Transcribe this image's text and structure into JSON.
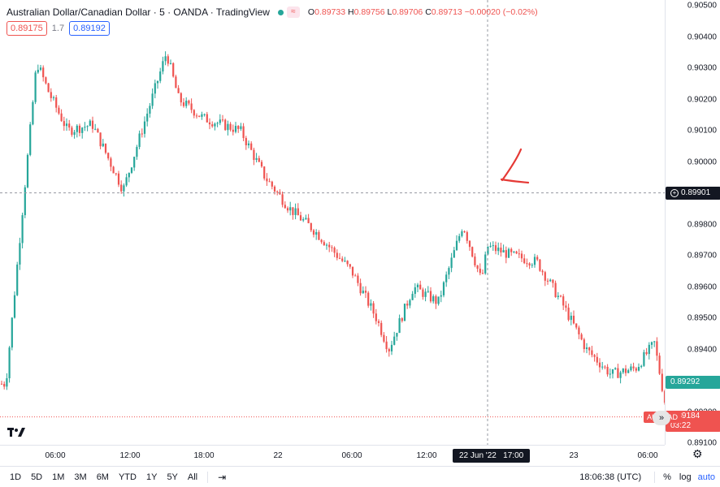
{
  "legend": {
    "title": "Australian Dollar/Canadian Dollar · 5 · OANDA · TradingView",
    "wave_glyph": "≈",
    "o_label": "O",
    "o_val": "0.89733",
    "h_label": "H",
    "h_val": "0.89756",
    "l_label": "L",
    "l_val": "0.89706",
    "c_label": "C",
    "c_val": "0.89713",
    "change": "−0.00020 (−0.02%)"
  },
  "quote": {
    "sell": "0.89175",
    "spread": "1.7",
    "buy": "0.89192"
  },
  "price_axis": {
    "ticks": [
      "0.90500",
      "0.90400",
      "0.90300",
      "0.90200",
      "0.90100",
      "0.90000",
      "0.89900",
      "0.89800",
      "0.89700",
      "0.89600",
      "0.89500",
      "0.89400",
      "0.89300",
      "0.89200",
      "0.89100"
    ],
    "crosshair_price": "0.89901",
    "last_price": "0.89292",
    "bid_price": "0.89184",
    "bid_countdown": "03:22",
    "bid_tag": "AUDCAD"
  },
  "time_axis": {
    "labels": [
      "06:00",
      "12:00",
      "18:00",
      "22",
      "06:00",
      "12:00",
      "23",
      "06:00"
    ],
    "crosshair_time": "22 Jun '22   17:00"
  },
  "bottom_bar": {
    "ranges": [
      "1D",
      "5D",
      "1M",
      "3M",
      "6M",
      "YTD",
      "1Y",
      "5Y",
      "All"
    ],
    "clock": "18:06:38 (UTC)",
    "pct": "%",
    "log": "log",
    "auto": "auto"
  },
  "colors": {
    "up": "#26a69a",
    "down": "#ef5350",
    "crosshair": "#9598a1",
    "annotation": "#e53935"
  },
  "chart_data": {
    "type": "candlestick",
    "title": "Australian Dollar/Canadian Dollar · 5 · OANDA · TradingView",
    "xlabel": "",
    "ylabel": "",
    "ylim": [
      0.891,
      0.905
    ],
    "y_ticks": [
      0.905,
      0.904,
      0.903,
      0.902,
      0.901,
      0.9,
      0.899,
      0.898,
      0.897,
      0.896,
      0.895,
      0.894,
      0.893,
      0.892,
      0.891
    ],
    "x_tick_labels": [
      "06:00",
      "12:00",
      "18:00",
      "22",
      "06:00",
      "12:00",
      "23",
      "06:00"
    ],
    "approx_close_path": [
      {
        "t": "21 Jun 02:00",
        "c": 0.8929
      },
      {
        "t": "21 Jun 04:30",
        "c": 0.9032
      },
      {
        "t": "21 Jun 05:30",
        "c": 0.9022
      },
      {
        "t": "21 Jun 07:00",
        "c": 0.901
      },
      {
        "t": "21 Jun 09:00",
        "c": 0.9012
      },
      {
        "t": "21 Jun 11:30",
        "c": 0.8991
      },
      {
        "t": "21 Jun 13:00",
        "c": 0.901
      },
      {
        "t": "21 Jun 15:00",
        "c": 0.9035
      },
      {
        "t": "21 Jun 16:00",
        "c": 0.902
      },
      {
        "t": "21 Jun 18:00",
        "c": 0.9014
      },
      {
        "t": "21 Jun 21:00",
        "c": 0.901
      },
      {
        "t": "21 Jun 23:00",
        "c": 0.8995
      },
      {
        "t": "22 Jun 01:00",
        "c": 0.8985
      },
      {
        "t": "22 Jun 03:00",
        "c": 0.8978
      },
      {
        "t": "22 Jun 06:00",
        "c": 0.8965
      },
      {
        "t": "22 Jun 08:00",
        "c": 0.895
      },
      {
        "t": "22 Jun 09:00",
        "c": 0.894
      },
      {
        "t": "22 Jun 11:00",
        "c": 0.896
      },
      {
        "t": "22 Jun 13:00",
        "c": 0.8955
      },
      {
        "t": "22 Jun 15:00",
        "c": 0.898
      },
      {
        "t": "22 Jun 16:30",
        "c": 0.8962
      },
      {
        "t": "22 Jun 17:00",
        "c": 0.8973
      },
      {
        "t": "22 Jun 19:00",
        "c": 0.897
      },
      {
        "t": "22 Jun 21:00",
        "c": 0.8968
      },
      {
        "t": "22 Jun 23:00",
        "c": 0.8955
      },
      {
        "t": "23 Jun 01:00",
        "c": 0.894
      },
      {
        "t": "23 Jun 03:00",
        "c": 0.8932
      },
      {
        "t": "23 Jun 05:00",
        "c": 0.8934
      },
      {
        "t": "23 Jun 06:30",
        "c": 0.8942
      },
      {
        "t": "23 Jun 07:30",
        "c": 0.892
      },
      {
        "t": "23 Jun 08:30",
        "c": 0.89292
      }
    ],
    "crosshair": {
      "t": "22 Jun 17:00",
      "price": 0.89901
    },
    "last_price": 0.89292,
    "bid_price": 0.89184
  }
}
